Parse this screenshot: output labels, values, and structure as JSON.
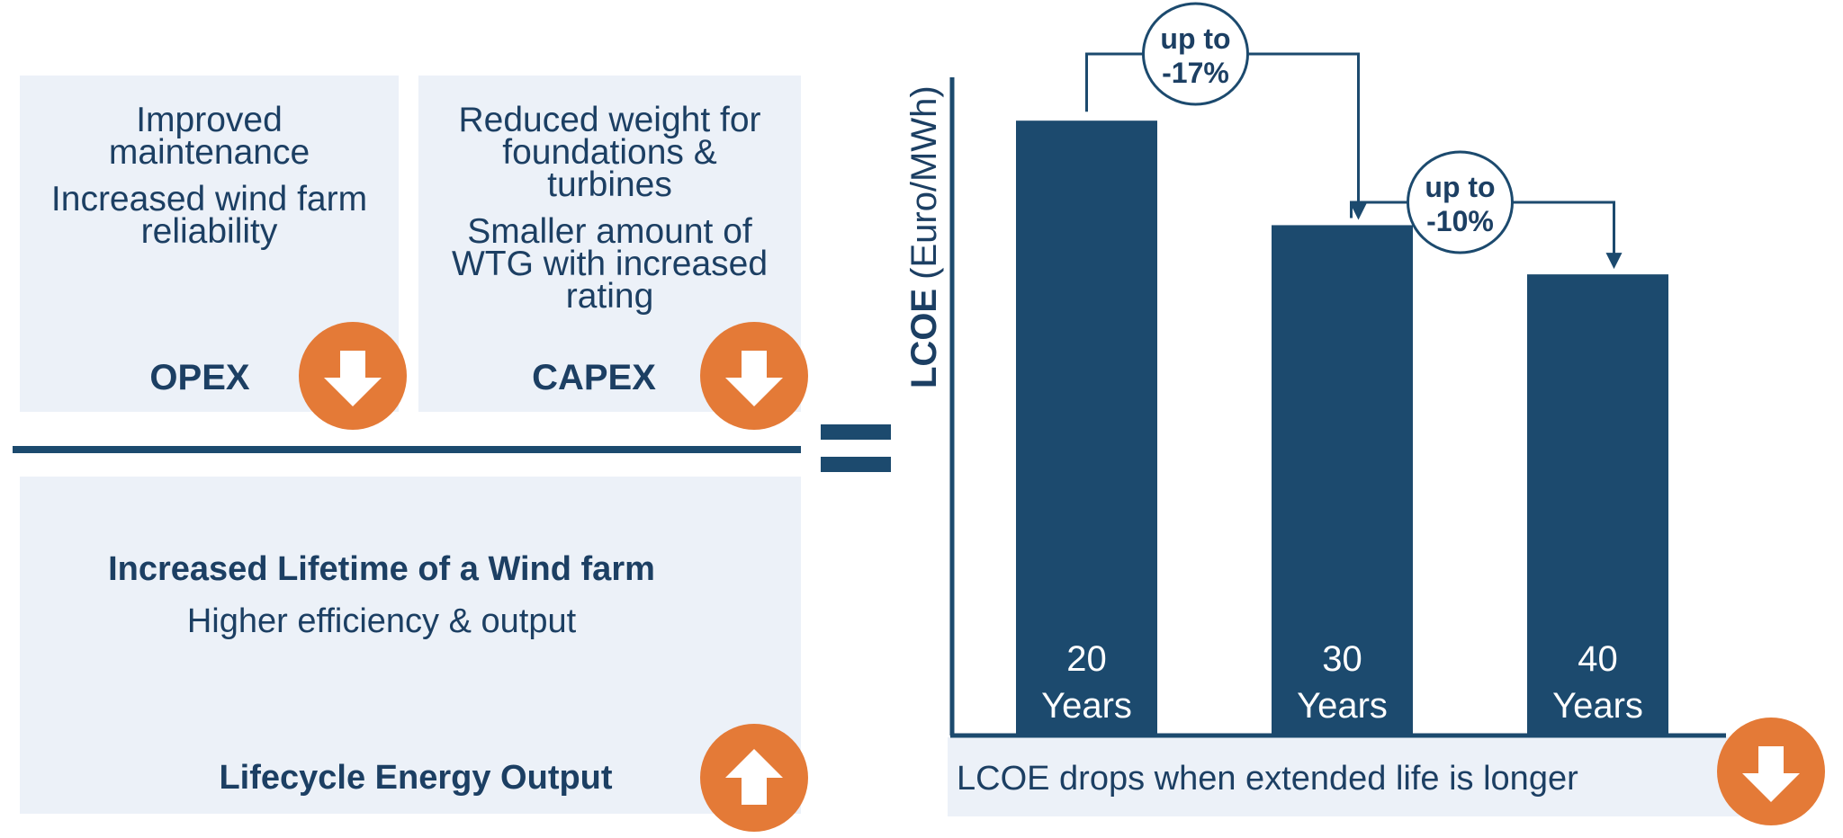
{
  "opex": {
    "lines": [
      "Improved",
      "maintenance",
      "Increased wind farm",
      "reliability"
    ],
    "title": "OPEX"
  },
  "capex": {
    "lines": [
      "Reduced weight for",
      "foundations &",
      "turbines",
      "Smaller amount of",
      "WTG with increased",
      "rating"
    ],
    "title": "CAPEX"
  },
  "lifetime": {
    "heading": "Increased Lifetime of a Wind farm",
    "subheading": "Higher efficiency & output",
    "title": "Lifecycle Energy Output"
  },
  "icons": {
    "opex": "arrow-down-icon",
    "capex": "arrow-down-icon",
    "lifecycle": "arrow-up-icon",
    "caption": "arrow-down-icon"
  },
  "colors": {
    "navy": "#1c4a6e",
    "orange": "#e47a37",
    "panel": "#ecf1f8"
  },
  "chart_data": {
    "type": "bar",
    "ylabel_bold": "LCOE",
    "ylabel_unit": "(Euro/MWh)",
    "categories": [
      "20 Years",
      "30 Years",
      "40 Years"
    ],
    "category_lines": [
      [
        "20",
        "Years"
      ],
      [
        "30",
        "Years"
      ],
      [
        "40",
        "Years"
      ]
    ],
    "values": [
      100,
      83,
      75
    ],
    "ylim": [
      0,
      105
    ],
    "annotations": [
      {
        "from": 0,
        "to": 1,
        "lines": [
          "up to",
          "-17%"
        ]
      },
      {
        "from": 1,
        "to": 2,
        "lines": [
          "up to",
          "-10%"
        ]
      }
    ],
    "grid": false,
    "legend": "none"
  },
  "caption": "LCOE drops when extended life is longer"
}
